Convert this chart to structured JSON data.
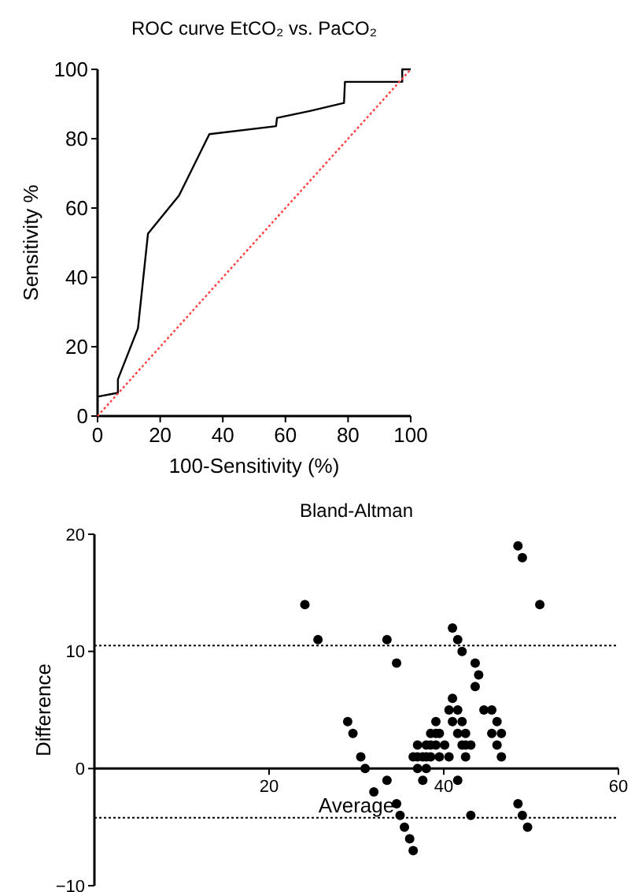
{
  "chart_data": [
    {
      "type": "line",
      "title": "ROC curve EtCO₂ vs. PaCO₂",
      "xlabel": "100-Sensitivity (%)",
      "ylabel": "Sensitivity %",
      "xlim": [
        0,
        100
      ],
      "ylim": [
        0,
        100
      ],
      "xticks": [
        0,
        20,
        40,
        60,
        80,
        100
      ],
      "yticks": [
        0,
        20,
        40,
        60,
        80,
        100
      ],
      "series": [
        {
          "color": "#000000",
          "x": [
            0,
            6.5,
            6.5,
            12.9,
            16.1,
            26,
            35.7,
            57,
            57.3,
            67.8,
            78.7,
            79,
            97.3,
            97.3,
            100
          ],
          "values": [
            5.6,
            6.7,
            10.6,
            25.3,
            52.6,
            63.6,
            81.3,
            83.6,
            86,
            88,
            90.3,
            96.4,
            96.4,
            100,
            100
          ],
          "line_style": "solid"
        },
        {
          "color": "#ff4040",
          "x": [
            0,
            100
          ],
          "values": [
            0,
            100
          ],
          "line_style": "dotted"
        }
      ]
    },
    {
      "type": "scatter",
      "title": "Bland-Altman",
      "xlabel": "Average",
      "ylabel": "Difference",
      "xlim": [
        0,
        60
      ],
      "ylim": [
        -10,
        20
      ],
      "xticks": [
        {
          "value": 0,
          "label": null
        },
        20,
        40,
        60
      ],
      "yticks": [
        {
          "value": -10,
          "label": "−10"
        },
        0,
        10,
        20
      ],
      "marker": "circle",
      "ref_lines": [
        {
          "axis": "y",
          "value": 10.5,
          "line_style": "dotted",
          "color": "#000000"
        },
        {
          "axis": "y",
          "value": -4.2,
          "line_style": "dotted",
          "color": "#000000"
        }
      ],
      "series": [
        {
          "color": "#000000",
          "x": [
            24.1,
            25.6,
            29.0,
            29.6,
            30.5,
            31.0,
            32.0,
            33.5,
            33.5,
            34.6,
            34.6,
            35.0,
            35.5,
            36.1,
            36.5,
            36.5,
            37.0,
            37.0,
            37.0,
            37.6,
            37.6,
            38.0,
            38.0,
            38.0,
            38.5,
            38.5,
            38.5,
            39.1,
            39.1,
            39.1,
            39.5,
            39.5,
            40.1,
            40.6,
            40.6,
            41.0,
            41.0,
            41.0,
            41.6,
            41.6,
            41.6,
            41.6,
            42.1,
            42.1,
            42.1,
            42.5,
            42.5,
            42.5,
            43.1,
            43.1,
            43.6,
            43.6,
            44.0,
            44.6,
            45.5,
            45.5,
            46.1,
            46.1,
            46.6,
            46.6,
            48.5,
            49.0,
            48.5,
            49.0,
            49.6,
            51.0
          ],
          "values": [
            14,
            11,
            4,
            3,
            1,
            0,
            -2,
            11,
            -1,
            9,
            -3,
            -4,
            -5,
            -6,
            -7,
            1,
            2,
            1,
            0,
            1,
            -1,
            2,
            1,
            0,
            3,
            2,
            1,
            4,
            3,
            2,
            3,
            1,
            2,
            1,
            5,
            12,
            6,
            4,
            5,
            3,
            -1,
            11,
            10,
            4,
            2,
            3,
            1,
            2,
            2,
            -4,
            9,
            7,
            8,
            5,
            5,
            3,
            4,
            2,
            3,
            1,
            19,
            18,
            -3,
            -4,
            -5,
            14
          ]
        }
      ]
    }
  ]
}
